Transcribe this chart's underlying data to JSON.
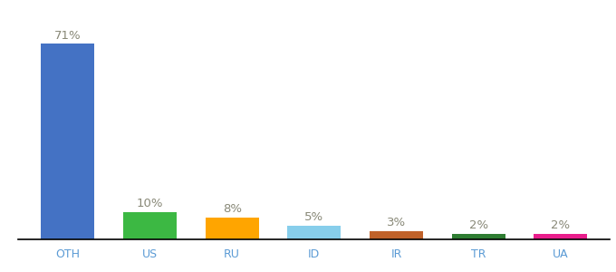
{
  "categories": [
    "OTH",
    "US",
    "RU",
    "ID",
    "IR",
    "TR",
    "UA"
  ],
  "values": [
    71,
    10,
    8,
    5,
    3,
    2,
    2
  ],
  "bar_colors": [
    "#4472C4",
    "#3CB843",
    "#FFA500",
    "#87CEEB",
    "#C0622A",
    "#2E7D32",
    "#E91E8C"
  ],
  "labels": [
    "71%",
    "10%",
    "8%",
    "5%",
    "3%",
    "2%",
    "2%"
  ],
  "background_color": "#ffffff",
  "ylim": [
    0,
    80
  ],
  "label_fontsize": 9.5,
  "tick_fontsize": 9,
  "label_color": "#888877",
  "tick_color": "#5B9BD5",
  "bar_width": 0.65
}
